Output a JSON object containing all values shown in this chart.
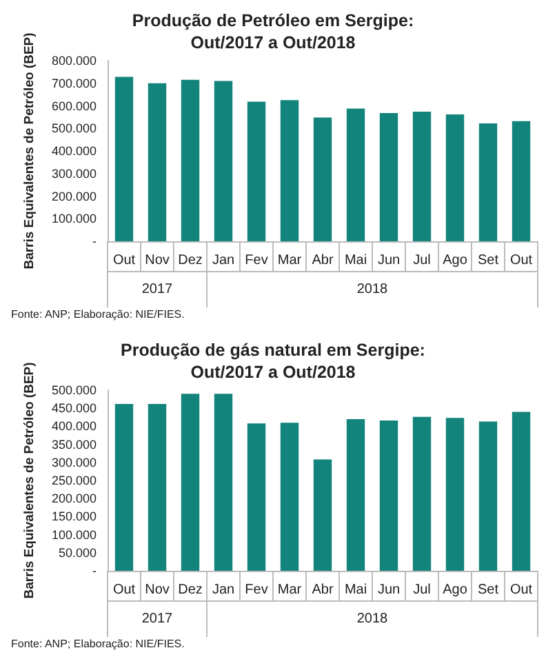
{
  "chart_data": [
    {
      "type": "bar",
      "title": "Produção de Petróleo em Sergipe:\nOut/2017 a Out/2018",
      "ylabel": "Barris Equivalentes de Petróleo (BEP)",
      "categories": [
        "Out",
        "Nov",
        "Dez",
        "Jan",
        "Fev",
        "Mar",
        "Abr",
        "Mai",
        "Jun",
        "Jul",
        "Ago",
        "Set",
        "Out"
      ],
      "series": [
        {
          "color": "#13847b",
          "values": [
            728000,
            700000,
            715000,
            710000,
            618000,
            625000,
            548000,
            588000,
            568000,
            574000,
            562000,
            522000,
            532000
          ]
        }
      ],
      "ylim": [
        0,
        800000
      ],
      "yticks": [
        {
          "value": 0,
          "label": "-"
        },
        {
          "value": 100000,
          "label": "100.000"
        },
        {
          "value": 200000,
          "label": "200.000"
        },
        {
          "value": 300000,
          "label": "300.000"
        },
        {
          "value": 400000,
          "label": "400.000"
        },
        {
          "value": 500000,
          "label": "500.000"
        },
        {
          "value": 600000,
          "label": "600.000"
        },
        {
          "value": 700000,
          "label": "700.000"
        },
        {
          "value": 800000,
          "label": "800.000"
        }
      ],
      "annotations": [
        "2017",
        "2018",
        "Fonte: ANP; Elaboração: NIE/FIES."
      ],
      "grid": false
    },
    {
      "type": "bar",
      "title": "Produção de gás natural em Sergipe:\nOut/2017 a Out/2018",
      "ylabel": "Barris Equivalentes de Petróleo (BEP)",
      "categories": [
        "Out",
        "Nov",
        "Dez",
        "Jan",
        "Fev",
        "Mar",
        "Abr",
        "Mai",
        "Jun",
        "Jul",
        "Ago",
        "Set",
        "Out"
      ],
      "series": [
        {
          "color": "#13847b",
          "values": [
            462000,
            462000,
            490000,
            490000,
            408000,
            410000,
            308000,
            420000,
            416000,
            426000,
            423000,
            413000,
            440000
          ]
        }
      ],
      "ylim": [
        0,
        500000
      ],
      "yticks": [
        {
          "value": 0,
          "label": "-"
        },
        {
          "value": 50000,
          "label": "50.000"
        },
        {
          "value": 100000,
          "label": "100.000"
        },
        {
          "value": 150000,
          "label": "150.000"
        },
        {
          "value": 200000,
          "label": "200.000"
        },
        {
          "value": 250000,
          "label": "250.000"
        },
        {
          "value": 300000,
          "label": "300.000"
        },
        {
          "value": 350000,
          "label": "350.000"
        },
        {
          "value": 400000,
          "label": "400.000"
        },
        {
          "value": 450000,
          "label": "450.000"
        },
        {
          "value": 500000,
          "label": "500.000"
        }
      ],
      "annotations": [
        "2017",
        "2018",
        "Fonte: ANP; Elaboração: NIE/FIES."
      ],
      "grid": false
    }
  ]
}
